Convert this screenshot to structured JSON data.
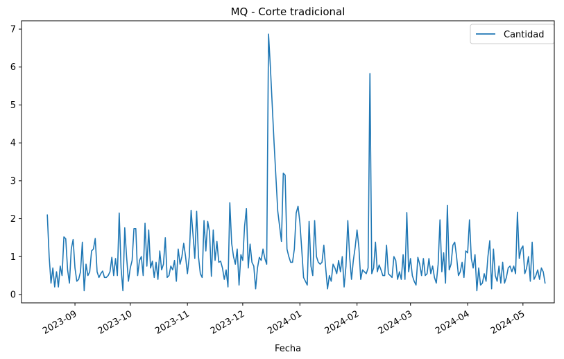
{
  "chart_data": {
    "type": "line",
    "title": "MQ - Corte tradicional",
    "xlabel": "Fecha",
    "ylabel": "",
    "xlim": [
      "2023-08-03",
      "2024-05-18"
    ],
    "ylim": [
      -0.22,
      7.22
    ],
    "yticks": [
      0,
      1,
      2,
      3,
      4,
      5,
      6,
      7
    ],
    "xticks": [
      "2023-09-01",
      "2023-10-01",
      "2023-11-01",
      "2023-12-01",
      "2024-01-01",
      "2024-02-01",
      "2024-03-01",
      "2024-04-01",
      "2024-05-01"
    ],
    "xtick_labels": [
      "2023-09",
      "2023-10",
      "2023-11",
      "2023-12",
      "2024-01",
      "2024-02",
      "2024-03",
      "2024-04",
      "2024-05"
    ],
    "legend_position": "top-right",
    "grid": false,
    "series": [
      {
        "name": "Cantidad",
        "color": "#1f77b4",
        "points": [
          [
            "2023-08-17",
            2.1
          ],
          [
            "2023-08-18",
            1.0
          ],
          [
            "2023-08-19",
            0.3
          ],
          [
            "2023-08-20",
            0.7
          ],
          [
            "2023-08-21",
            0.2
          ],
          [
            "2023-08-22",
            0.6
          ],
          [
            "2023-08-23",
            0.2
          ],
          [
            "2023-08-24",
            0.75
          ],
          [
            "2023-08-25",
            0.5
          ],
          [
            "2023-08-26",
            1.52
          ],
          [
            "2023-08-27",
            1.47
          ],
          [
            "2023-08-28",
            0.65
          ],
          [
            "2023-08-29",
            0.3
          ],
          [
            "2023-08-30",
            1.2
          ],
          [
            "2023-08-31",
            1.45
          ],
          [
            "2023-09-01",
            0.7
          ],
          [
            "2023-09-02",
            0.35
          ],
          [
            "2023-09-03",
            0.4
          ],
          [
            "2023-09-04",
            0.6
          ],
          [
            "2023-09-05",
            1.38
          ],
          [
            "2023-09-06",
            0.1
          ],
          [
            "2023-09-07",
            0.8
          ],
          [
            "2023-09-08",
            0.5
          ],
          [
            "2023-09-09",
            0.6
          ],
          [
            "2023-09-10",
            1.15
          ],
          [
            "2023-09-11",
            1.2
          ],
          [
            "2023-09-12",
            1.48
          ],
          [
            "2023-09-13",
            0.6
          ],
          [
            "2023-09-14",
            0.45
          ],
          [
            "2023-09-15",
            0.55
          ],
          [
            "2023-09-16",
            0.62
          ],
          [
            "2023-09-17",
            0.45
          ],
          [
            "2023-09-18",
            0.45
          ],
          [
            "2023-09-19",
            0.5
          ],
          [
            "2023-09-20",
            0.6
          ],
          [
            "2023-09-21",
            0.98
          ],
          [
            "2023-09-22",
            0.5
          ],
          [
            "2023-09-23",
            0.95
          ],
          [
            "2023-09-24",
            0.5
          ],
          [
            "2023-09-25",
            2.15
          ],
          [
            "2023-09-26",
            0.7
          ],
          [
            "2023-09-27",
            0.1
          ],
          [
            "2023-09-28",
            1.76
          ],
          [
            "2023-09-29",
            1.0
          ],
          [
            "2023-09-30",
            0.35
          ],
          [
            "2023-10-01",
            0.7
          ],
          [
            "2023-10-02",
            0.9
          ],
          [
            "2023-10-03",
            1.74
          ],
          [
            "2023-10-04",
            1.74
          ],
          [
            "2023-10-05",
            0.5
          ],
          [
            "2023-10-06",
            0.9
          ],
          [
            "2023-10-07",
            1.0
          ],
          [
            "2023-10-08",
            0.5
          ],
          [
            "2023-10-09",
            1.88
          ],
          [
            "2023-10-10",
            0.75
          ],
          [
            "2023-10-11",
            1.7
          ],
          [
            "2023-10-12",
            0.7
          ],
          [
            "2023-10-13",
            0.88
          ],
          [
            "2023-10-14",
            0.45
          ],
          [
            "2023-10-15",
            0.85
          ],
          [
            "2023-10-16",
            0.4
          ],
          [
            "2023-10-17",
            1.15
          ],
          [
            "2023-10-18",
            0.65
          ],
          [
            "2023-10-19",
            0.8
          ],
          [
            "2023-10-20",
            1.5
          ],
          [
            "2023-10-21",
            0.45
          ],
          [
            "2023-10-22",
            0.5
          ],
          [
            "2023-10-23",
            0.75
          ],
          [
            "2023-10-24",
            0.65
          ],
          [
            "2023-10-25",
            0.9
          ],
          [
            "2023-10-26",
            0.35
          ],
          [
            "2023-10-27",
            1.2
          ],
          [
            "2023-10-28",
            0.8
          ],
          [
            "2023-10-29",
            1.0
          ],
          [
            "2023-10-30",
            1.35
          ],
          [
            "2023-10-31",
            1.0
          ],
          [
            "2023-11-01",
            0.55
          ],
          [
            "2023-11-02",
            1.0
          ],
          [
            "2023-11-03",
            2.22
          ],
          [
            "2023-11-04",
            1.6
          ],
          [
            "2023-11-05",
            0.95
          ],
          [
            "2023-11-06",
            2.2
          ],
          [
            "2023-11-07",
            1.0
          ],
          [
            "2023-11-08",
            0.55
          ],
          [
            "2023-11-09",
            0.45
          ],
          [
            "2023-11-10",
            1.95
          ],
          [
            "2023-11-11",
            1.15
          ],
          [
            "2023-11-12",
            1.93
          ],
          [
            "2023-11-13",
            1.65
          ],
          [
            "2023-11-14",
            0.48
          ],
          [
            "2023-11-15",
            1.7
          ],
          [
            "2023-11-16",
            0.9
          ],
          [
            "2023-11-17",
            1.4
          ],
          [
            "2023-11-18",
            0.85
          ],
          [
            "2023-11-19",
            0.88
          ],
          [
            "2023-11-20",
            0.7
          ],
          [
            "2023-11-21",
            0.4
          ],
          [
            "2023-11-22",
            0.65
          ],
          [
            "2023-11-23",
            0.2
          ],
          [
            "2023-11-24",
            2.42
          ],
          [
            "2023-11-25",
            1.35
          ],
          [
            "2023-11-26",
            1.0
          ],
          [
            "2023-11-27",
            0.8
          ],
          [
            "2023-11-28",
            1.2
          ],
          [
            "2023-11-29",
            0.25
          ],
          [
            "2023-11-30",
            1.05
          ],
          [
            "2023-12-01",
            0.9
          ],
          [
            "2023-12-02",
            1.8
          ],
          [
            "2023-12-03",
            2.27
          ],
          [
            "2023-12-04",
            0.7
          ],
          [
            "2023-12-05",
            1.33
          ],
          [
            "2023-12-06",
            0.85
          ],
          [
            "2023-12-07",
            0.75
          ],
          [
            "2023-12-08",
            0.15
          ],
          [
            "2023-12-09",
            0.7
          ],
          [
            "2023-12-10",
            0.98
          ],
          [
            "2023-12-11",
            0.9
          ],
          [
            "2023-12-12",
            1.2
          ],
          [
            "2023-12-13",
            0.95
          ],
          [
            "2023-12-14",
            0.8
          ],
          [
            "2023-12-15",
            6.87
          ],
          [
            "2023-12-16",
            6.0
          ],
          [
            "2023-12-17",
            5.0
          ],
          [
            "2023-12-18",
            4.0
          ],
          [
            "2023-12-19",
            3.1
          ],
          [
            "2023-12-20",
            2.2
          ],
          [
            "2023-12-21",
            1.8
          ],
          [
            "2023-12-22",
            1.4
          ],
          [
            "2023-12-23",
            3.2
          ],
          [
            "2023-12-24",
            3.15
          ],
          [
            "2023-12-25",
            1.2
          ],
          [
            "2023-12-26",
            1.0
          ],
          [
            "2023-12-27",
            0.85
          ],
          [
            "2023-12-28",
            0.85
          ],
          [
            "2023-12-29",
            1.2
          ],
          [
            "2023-12-30",
            2.15
          ],
          [
            "2023-12-31",
            2.33
          ],
          [
            "2024-01-01",
            1.9
          ],
          [
            "2024-01-02",
            1.2
          ],
          [
            "2024-01-03",
            0.45
          ],
          [
            "2024-01-04",
            0.35
          ],
          [
            "2024-01-05",
            0.25
          ],
          [
            "2024-01-06",
            1.93
          ],
          [
            "2024-01-07",
            0.75
          ],
          [
            "2024-01-08",
            0.5
          ],
          [
            "2024-01-09",
            1.95
          ],
          [
            "2024-01-10",
            1.0
          ],
          [
            "2024-01-11",
            0.85
          ],
          [
            "2024-01-12",
            0.8
          ],
          [
            "2024-01-13",
            0.85
          ],
          [
            "2024-01-14",
            1.3
          ],
          [
            "2024-01-15",
            0.7
          ],
          [
            "2024-01-16",
            0.15
          ],
          [
            "2024-01-17",
            0.5
          ],
          [
            "2024-01-18",
            0.35
          ],
          [
            "2024-01-19",
            0.8
          ],
          [
            "2024-01-20",
            0.7
          ],
          [
            "2024-01-21",
            0.55
          ],
          [
            "2024-01-22",
            0.9
          ],
          [
            "2024-01-23",
            0.6
          ],
          [
            "2024-01-24",
            1.0
          ],
          [
            "2024-01-25",
            0.2
          ],
          [
            "2024-01-26",
            0.75
          ],
          [
            "2024-01-27",
            1.95
          ],
          [
            "2024-01-28",
            1.0
          ],
          [
            "2024-01-29",
            0.4
          ],
          [
            "2024-01-30",
            0.9
          ],
          [
            "2024-01-31",
            1.25
          ],
          [
            "2024-02-01",
            1.7
          ],
          [
            "2024-02-02",
            1.25
          ],
          [
            "2024-02-03",
            0.4
          ],
          [
            "2024-02-04",
            0.65
          ],
          [
            "2024-02-05",
            0.6
          ],
          [
            "2024-02-06",
            0.55
          ],
          [
            "2024-02-07",
            0.7
          ],
          [
            "2024-02-08",
            5.83
          ],
          [
            "2024-02-09",
            0.55
          ],
          [
            "2024-02-10",
            0.7
          ],
          [
            "2024-02-11",
            1.38
          ],
          [
            "2024-02-12",
            0.6
          ],
          [
            "2024-02-13",
            0.78
          ],
          [
            "2024-02-14",
            0.65
          ],
          [
            "2024-02-15",
            0.5
          ],
          [
            "2024-02-16",
            0.5
          ],
          [
            "2024-02-17",
            1.3
          ],
          [
            "2024-02-18",
            0.55
          ],
          [
            "2024-02-19",
            0.5
          ],
          [
            "2024-02-20",
            0.45
          ],
          [
            "2024-02-21",
            1.0
          ],
          [
            "2024-02-22",
            0.9
          ],
          [
            "2024-02-23",
            0.4
          ],
          [
            "2024-02-24",
            0.6
          ],
          [
            "2024-02-25",
            0.4
          ],
          [
            "2024-02-26",
            1.05
          ],
          [
            "2024-02-27",
            0.4
          ],
          [
            "2024-02-28",
            2.16
          ],
          [
            "2024-02-29",
            0.6
          ],
          [
            "2024-03-01",
            0.95
          ],
          [
            "2024-03-02",
            0.5
          ],
          [
            "2024-03-03",
            0.35
          ],
          [
            "2024-03-04",
            0.25
          ],
          [
            "2024-03-05",
            0.98
          ],
          [
            "2024-03-06",
            0.8
          ],
          [
            "2024-03-07",
            0.5
          ],
          [
            "2024-03-08",
            0.95
          ],
          [
            "2024-03-09",
            0.5
          ],
          [
            "2024-03-10",
            0.55
          ],
          [
            "2024-03-11",
            0.95
          ],
          [
            "2024-03-12",
            0.55
          ],
          [
            "2024-03-13",
            0.75
          ],
          [
            "2024-03-14",
            0.45
          ],
          [
            "2024-03-15",
            0.3
          ],
          [
            "2024-03-16",
            0.8
          ],
          [
            "2024-03-17",
            1.97
          ],
          [
            "2024-03-18",
            0.6
          ],
          [
            "2024-03-19",
            1.1
          ],
          [
            "2024-03-20",
            0.3
          ],
          [
            "2024-03-21",
            2.35
          ],
          [
            "2024-03-22",
            0.65
          ],
          [
            "2024-03-23",
            0.8
          ],
          [
            "2024-03-24",
            1.3
          ],
          [
            "2024-03-25",
            1.38
          ],
          [
            "2024-03-26",
            1.0
          ],
          [
            "2024-03-27",
            0.5
          ],
          [
            "2024-03-28",
            0.6
          ],
          [
            "2024-03-29",
            0.85
          ],
          [
            "2024-03-30",
            0.45
          ],
          [
            "2024-03-31",
            1.15
          ],
          [
            "2024-04-01",
            1.1
          ],
          [
            "2024-04-02",
            1.97
          ],
          [
            "2024-04-03",
            0.95
          ],
          [
            "2024-04-04",
            0.7
          ],
          [
            "2024-04-05",
            1.05
          ],
          [
            "2024-04-06",
            0.1
          ],
          [
            "2024-04-07",
            0.7
          ],
          [
            "2024-04-08",
            0.25
          ],
          [
            "2024-04-09",
            0.3
          ],
          [
            "2024-04-10",
            0.55
          ],
          [
            "2024-04-11",
            0.35
          ],
          [
            "2024-04-12",
            1.0
          ],
          [
            "2024-04-13",
            1.42
          ],
          [
            "2024-04-14",
            0.15
          ],
          [
            "2024-04-15",
            1.2
          ],
          [
            "2024-04-16",
            0.5
          ],
          [
            "2024-04-17",
            0.35
          ],
          [
            "2024-04-18",
            0.75
          ],
          [
            "2024-04-19",
            0.3
          ],
          [
            "2024-04-20",
            0.85
          ],
          [
            "2024-04-21",
            0.3
          ],
          [
            "2024-04-22",
            0.45
          ],
          [
            "2024-04-23",
            0.7
          ],
          [
            "2024-04-24",
            0.75
          ],
          [
            "2024-04-25",
            0.6
          ],
          [
            "2024-04-26",
            0.75
          ],
          [
            "2024-04-27",
            0.55
          ],
          [
            "2024-04-28",
            2.17
          ],
          [
            "2024-04-29",
            0.95
          ],
          [
            "2024-04-30",
            1.2
          ],
          [
            "2024-05-01",
            1.28
          ],
          [
            "2024-05-02",
            0.55
          ],
          [
            "2024-05-03",
            0.7
          ],
          [
            "2024-05-04",
            1.0
          ],
          [
            "2024-05-05",
            0.35
          ],
          [
            "2024-05-06",
            1.38
          ],
          [
            "2024-05-07",
            0.4
          ],
          [
            "2024-05-08",
            0.5
          ],
          [
            "2024-05-09",
            0.65
          ],
          [
            "2024-05-10",
            0.4
          ],
          [
            "2024-05-11",
            0.7
          ],
          [
            "2024-05-12",
            0.6
          ],
          [
            "2024-05-13",
            0.3
          ]
        ]
      }
    ]
  }
}
